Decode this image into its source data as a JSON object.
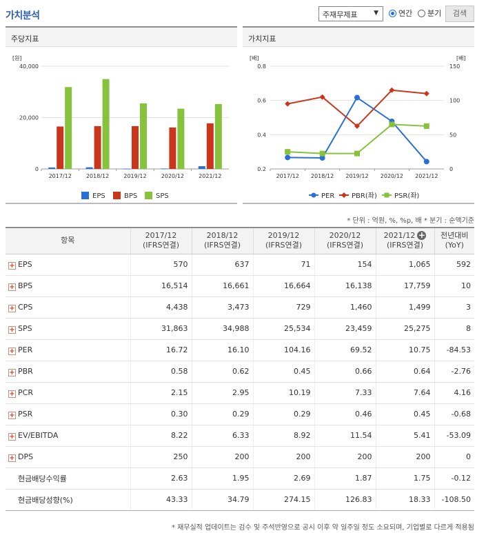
{
  "header": {
    "title": "가치분석",
    "select_value": "주재무제표",
    "radio_annual": "연간",
    "radio_quarter": "분기",
    "search_label": "검색"
  },
  "left_panel": {
    "title": "주당지표"
  },
  "right_panel": {
    "title": "가치지표"
  },
  "chart_data": [
    {
      "type": "bar",
      "unit": "[원]",
      "categories": [
        "2017/12",
        "2018/12",
        "2019/12",
        "2020/12",
        "2021/12"
      ],
      "ylim": [
        0,
        40000
      ],
      "yticks": [
        "0",
        "20,000",
        "40,000"
      ],
      "grid": true,
      "legend": "bottom",
      "series": [
        {
          "name": "EPS",
          "color": "#2a6fd6",
          "values": [
            570,
            637,
            71,
            154,
            1065
          ]
        },
        {
          "name": "BPS",
          "color": "#c9361b",
          "values": [
            16514,
            16661,
            16664,
            16138,
            17759
          ]
        },
        {
          "name": "SPS",
          "color": "#86c23b",
          "values": [
            31863,
            34988,
            25534,
            23459,
            25275
          ]
        }
      ]
    },
    {
      "type": "line",
      "unit_left": "[배]",
      "unit_right": "[배]",
      "categories": [
        "2017/12",
        "2018/12",
        "2019/12",
        "2020/12",
        "2021/12"
      ],
      "ylim_left": [
        0.2,
        0.8
      ],
      "yticks_left": [
        "0.2",
        "0.4",
        "0.6",
        "0.8"
      ],
      "ylim_right": [
        0,
        150
      ],
      "yticks_right": [
        "0",
        "50",
        "100",
        "150"
      ],
      "grid": true,
      "legend": "bottom",
      "series": [
        {
          "name": "PER",
          "axis": "right",
          "color": "#2a6fd6",
          "marker": "circle",
          "values": [
            16.72,
            16.1,
            104.16,
            69.52,
            10.75
          ]
        },
        {
          "name": "PBR(좌)",
          "axis": "left",
          "color": "#c9361b",
          "marker": "diamond",
          "values": [
            0.58,
            0.62,
            0.45,
            0.66,
            0.64
          ]
        },
        {
          "name": "PSR(좌)",
          "axis": "left",
          "color": "#86c23b",
          "marker": "square",
          "values": [
            0.3,
            0.29,
            0.29,
            0.46,
            0.45
          ]
        }
      ]
    }
  ],
  "unit_note": "* 단위 : 억원, %, %p, 배    * 분기 : 순액기준",
  "table": {
    "headers": [
      {
        "line1": "항목",
        "line2": ""
      },
      {
        "line1": "2017/12",
        "line2": "(IFRS연결)"
      },
      {
        "line1": "2018/12",
        "line2": "(IFRS연결)"
      },
      {
        "line1": "2019/12",
        "line2": "(IFRS연결)"
      },
      {
        "line1": "2020/12",
        "line2": "(IFRS연결)"
      },
      {
        "line1": "2021/12",
        "line2": "(IFRS연결)"
      },
      {
        "line1": "전년대비",
        "line2": "(YoY)"
      }
    ],
    "rows": [
      {
        "label": "EPS",
        "expandable": true,
        "values": [
          "570",
          "637",
          "71",
          "154",
          "1,065"
        ],
        "yoy": "592",
        "neg": false
      },
      {
        "label": "BPS",
        "expandable": true,
        "values": [
          "16,514",
          "16,661",
          "16,664",
          "16,138",
          "17,759"
        ],
        "yoy": "10",
        "neg": false
      },
      {
        "label": "CPS",
        "expandable": true,
        "values": [
          "4,438",
          "3,473",
          "729",
          "1,460",
          "1,499"
        ],
        "yoy": "3",
        "neg": false
      },
      {
        "label": "SPS",
        "expandable": true,
        "values": [
          "31,863",
          "34,988",
          "25,534",
          "23,459",
          "25,275"
        ],
        "yoy": "8",
        "neg": false
      },
      {
        "label": "PER",
        "expandable": true,
        "values": [
          "16.72",
          "16.10",
          "104.16",
          "69.52",
          "10.75"
        ],
        "yoy": "-84.53",
        "neg": true
      },
      {
        "label": "PBR",
        "expandable": true,
        "values": [
          "0.58",
          "0.62",
          "0.45",
          "0.66",
          "0.64"
        ],
        "yoy": "-2.76",
        "neg": true
      },
      {
        "label": "PCR",
        "expandable": true,
        "values": [
          "2.15",
          "2.95",
          "10.19",
          "7.33",
          "7.64"
        ],
        "yoy": "4.16",
        "neg": false
      },
      {
        "label": "PSR",
        "expandable": true,
        "values": [
          "0.30",
          "0.29",
          "0.29",
          "0.46",
          "0.45"
        ],
        "yoy": "-0.68",
        "neg": true
      },
      {
        "label": "EV/EBITDA",
        "expandable": true,
        "values": [
          "8.22",
          "6.33",
          "8.92",
          "11.54",
          "5.41"
        ],
        "yoy": "-53.09",
        "neg": true
      },
      {
        "label": "DPS",
        "expandable": true,
        "values": [
          "250",
          "200",
          "200",
          "200",
          "200"
        ],
        "yoy": "0",
        "neg": false
      },
      {
        "label": "현금배당수익률",
        "expandable": false,
        "values": [
          "2.63",
          "1.95",
          "2.69",
          "1.87",
          "1.75"
        ],
        "yoy": "-0.12",
        "neg": true
      },
      {
        "label": "현금배당성향(%)",
        "expandable": false,
        "values": [
          "43.33",
          "34.79",
          "274.15",
          "126.83",
          "18.33"
        ],
        "yoy": "-108.50",
        "neg": true
      }
    ]
  },
  "footnote": "* 재무실적 업데이트는 검수 및 주석반영으로 공시 이후 약 일주일 정도 소요되며, 기업별로 다르게 적용됨"
}
